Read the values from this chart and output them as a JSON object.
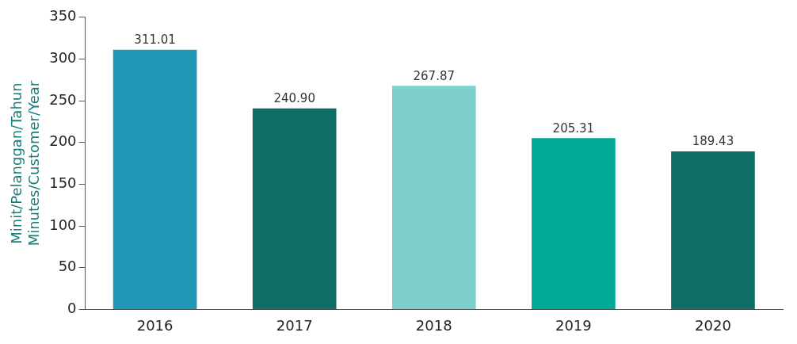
{
  "chart_data": {
    "type": "bar",
    "ylabel": "Minit/Pelanggan/Tahun\nMinutes/Customer/Year",
    "categories": [
      "2016",
      "2017",
      "2018",
      "2019",
      "2020"
    ],
    "values": [
      311.01,
      240.9,
      267.87,
      205.31,
      189.43
    ],
    "value_labels": [
      "311.01",
      "240.90",
      "267.87",
      "205.31",
      "189.43"
    ],
    "colors": [
      "#2196b6",
      "#0f6e66",
      "#7fcfcf",
      "#00a896",
      "#0f6e66"
    ],
    "ylim": [
      0,
      350
    ],
    "yticks": [
      0,
      50,
      100,
      150,
      200,
      250,
      300,
      350
    ],
    "grid": false,
    "legend": false
  }
}
